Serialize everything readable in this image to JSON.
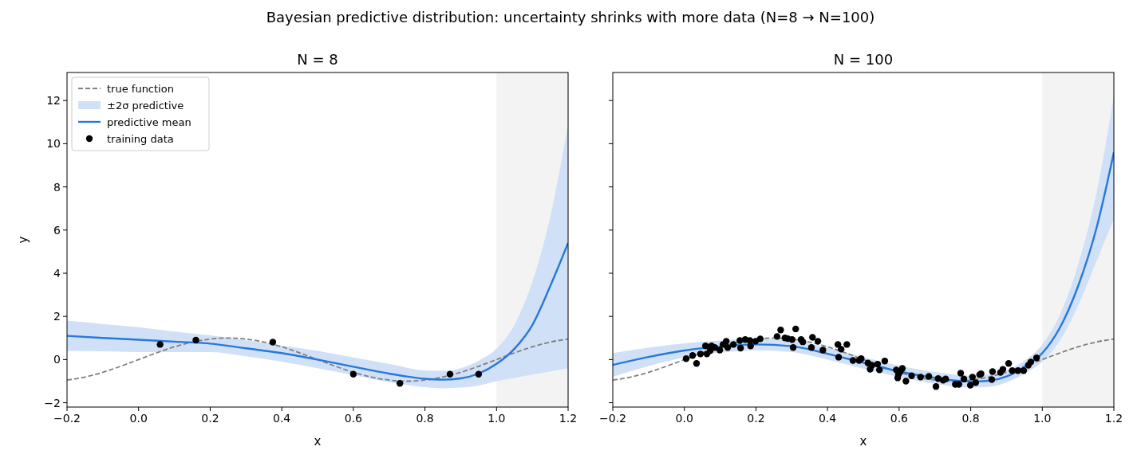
{
  "chart_data": [
    {
      "type": "line",
      "title": "N = 8",
      "xlabel": "x",
      "ylabel": "y",
      "annotations": [
        "Bayesian predictive distribution: uncertainty shrinks with more data (N=8 → N=100)",
        "±2σ predictive"
      ],
      "xlim": [
        -0.2,
        1.2
      ],
      "ylim": [
        -2.2,
        13.3
      ],
      "xticks": [
        {
          "value": -0.2,
          "label": "−0.2"
        },
        {
          "value": 0,
          "label": "0.0"
        },
        {
          "value": 0.2,
          "label": "0.2"
        },
        {
          "value": 0.4,
          "label": "0.4"
        },
        {
          "value": 0.6,
          "label": "0.6"
        },
        {
          "value": 0.8,
          "label": "0.8"
        },
        {
          "value": 1,
          "label": "1.0"
        },
        {
          "value": 1.2,
          "label": "1.2"
        }
      ],
      "yticks": [
        {
          "value": -2,
          "label": "−2"
        },
        0,
        2,
        4,
        6,
        8,
        10,
        12
      ],
      "legend": "upper left",
      "grid": false,
      "bands": [
        {
          "axis": "x",
          "from": 1.0,
          "to": 1.2,
          "color": "#f3f3f3"
        }
      ],
      "series": [
        {
          "name": "true function",
          "type": "line",
          "color": "#808080",
          "line_style": "dashed",
          "x": [
            -0.2,
            -0.15,
            -0.1,
            -0.05,
            0,
            0.05,
            0.1,
            0.15,
            0.2,
            0.25,
            0.3,
            0.35,
            0.4,
            0.45,
            0.5,
            0.55,
            0.6,
            0.65,
            0.7,
            0.75,
            0.8,
            0.85,
            0.9,
            0.95,
            1.0,
            1.05,
            1.1,
            1.15,
            1.2
          ],
          "values": [
            -0.95,
            -0.81,
            -0.59,
            -0.31,
            0,
            0.31,
            0.59,
            0.81,
            0.95,
            1,
            0.95,
            0.81,
            0.59,
            0.31,
            0,
            -0.31,
            -0.59,
            -0.81,
            -0.95,
            -1,
            -0.95,
            -0.81,
            -0.59,
            -0.31,
            0,
            0.31,
            0.59,
            0.81,
            0.95
          ]
        },
        {
          "name": "predictive mean",
          "type": "line",
          "color": "#2878d8",
          "line_style": "solid",
          "x": [
            -0.2,
            -0.1,
            0,
            0.1,
            0.2,
            0.3,
            0.4,
            0.5,
            0.6,
            0.7,
            0.8,
            0.85,
            0.9,
            0.95,
            1.0,
            1.05,
            1.1,
            1.15,
            1.2
          ],
          "values": [
            1.1,
            1.0,
            0.92,
            0.83,
            0.74,
            0.52,
            0.3,
            0.0,
            -0.33,
            -0.65,
            -0.89,
            -0.93,
            -0.87,
            -0.65,
            -0.2,
            0.5,
            1.6,
            3.4,
            5.4
          ],
          "upper": [
            1.8,
            1.65,
            1.5,
            1.3,
            1.12,
            0.9,
            0.65,
            0.4,
            0.1,
            -0.2,
            -0.5,
            -0.52,
            -0.4,
            -0.05,
            0.5,
            1.6,
            3.6,
            6.6,
            10.9
          ],
          "lower": [
            0.4,
            0.38,
            0.35,
            0.35,
            0.35,
            0.15,
            -0.1,
            -0.4,
            -0.72,
            -1.05,
            -1.28,
            -1.33,
            -1.3,
            -1.2,
            -1.0,
            -0.85,
            -0.7,
            -0.55,
            -0.4
          ]
        },
        {
          "name": "training data",
          "type": "scatter",
          "color": "#000000",
          "marker": "circle",
          "x": [
            0.06,
            0.16,
            0.375,
            0.6,
            0.73,
            0.87,
            0.95
          ],
          "values": [
            0.7,
            0.9,
            0.81,
            -0.68,
            -1.1,
            -0.68,
            -0.68
          ]
        }
      ]
    },
    {
      "type": "line",
      "title": "N = 100",
      "xlabel": "x",
      "tick_labels": "x",
      "xlim": [
        -0.2,
        1.2
      ],
      "ylim": [
        -2.2,
        13.3
      ],
      "xticks": [
        {
          "value": -0.2,
          "label": "−0.2"
        },
        {
          "value": 0,
          "label": "0.0"
        },
        {
          "value": 0.2,
          "label": "0.2"
        },
        {
          "value": 0.4,
          "label": "0.4"
        },
        {
          "value": 0.6,
          "label": "0.6"
        },
        {
          "value": 0.8,
          "label": "0.8"
        },
        {
          "value": 1,
          "label": "1.0"
        },
        {
          "value": 1.2,
          "label": "1.2"
        }
      ],
      "yticks": [
        -2,
        0,
        2,
        4,
        6,
        8,
        10,
        12
      ],
      "legend": false,
      "grid": false,
      "bands": [
        {
          "axis": "x",
          "from": 1.0,
          "to": 1.2,
          "color": "#f3f3f3"
        }
      ],
      "series": [
        {
          "type": "line",
          "color": "#808080",
          "line_style": "dashed",
          "x": [
            -0.2,
            -0.15,
            -0.1,
            -0.05,
            0,
            0.05,
            0.1,
            0.15,
            0.2,
            0.25,
            0.3,
            0.35,
            0.4,
            0.45,
            0.5,
            0.55,
            0.6,
            0.65,
            0.7,
            0.75,
            0.8,
            0.85,
            0.9,
            0.95,
            1.0,
            1.05,
            1.1,
            1.15,
            1.2
          ],
          "values": [
            -0.95,
            -0.81,
            -0.59,
            -0.31,
            0,
            0.31,
            0.59,
            0.81,
            0.95,
            1,
            0.95,
            0.81,
            0.59,
            0.31,
            0,
            -0.31,
            -0.59,
            -0.81,
            -0.95,
            -1,
            -0.95,
            -0.81,
            -0.59,
            -0.31,
            0,
            0.31,
            0.59,
            0.81,
            0.95
          ]
        },
        {
          "type": "line",
          "color": "#2878d8",
          "line_style": "solid",
          "x": [
            -0.2,
            -0.1,
            0,
            0.1,
            0.2,
            0.3,
            0.4,
            0.5,
            0.6,
            0.7,
            0.8,
            0.85,
            0.9,
            0.95,
            1.0,
            1.05,
            1.1,
            1.15,
            1.2
          ],
          "values": [
            -0.25,
            0.12,
            0.42,
            0.6,
            0.7,
            0.62,
            0.27,
            -0.15,
            -0.55,
            -0.85,
            -1.02,
            -0.98,
            -0.78,
            -0.35,
            0.3,
            1.5,
            3.4,
            6.0,
            9.6
          ],
          "upper": [
            0.3,
            0.55,
            0.75,
            0.88,
            0.97,
            0.9,
            0.55,
            0.12,
            -0.28,
            -0.58,
            -0.75,
            -0.7,
            -0.5,
            -0.05,
            0.7,
            2.1,
            4.4,
            7.6,
            12.2
          ],
          "lower": [
            -0.8,
            -0.3,
            0.1,
            0.32,
            0.43,
            0.35,
            0.0,
            -0.42,
            -0.82,
            -1.12,
            -1.3,
            -1.27,
            -1.06,
            -0.65,
            -0.1,
            0.9,
            2.5,
            4.5,
            6.5
          ]
        },
        {
          "type": "scatter",
          "color": "#000000",
          "marker": "circle",
          "x": [
            0.005,
            0.023,
            0.034,
            0.045,
            0.059,
            0.063,
            0.072,
            0.076,
            0.085,
            0.099,
            0.108,
            0.117,
            0.121,
            0.137,
            0.155,
            0.157,
            0.17,
            0.183,
            0.185,
            0.199,
            0.212,
            0.259,
            0.269,
            0.281,
            0.289,
            0.301,
            0.304,
            0.311,
            0.326,
            0.331,
            0.355,
            0.358,
            0.373,
            0.387,
            0.429,
            0.431,
            0.438,
            0.454,
            0.471,
            0.488,
            0.494,
            0.513,
            0.519,
            0.524,
            0.54,
            0.545,
            0.56,
            0.592,
            0.598,
            0.603,
            0.596,
            0.609,
            0.619,
            0.635,
            0.66,
            0.683,
            0.703,
            0.709,
            0.723,
            0.73,
            0.757,
            0.767,
            0.772,
            0.781,
            0.799,
            0.805,
            0.814,
            0.825,
            0.829,
            0.859,
            0.861,
            0.883,
            0.89,
            0.906,
            0.916,
            0.932,
            0.948,
            0.961,
            0.968,
            0.984
          ],
          "values": [
            0.04,
            0.19,
            -0.18,
            0.26,
            0.63,
            0.26,
            0.41,
            0.63,
            0.56,
            0.44,
            0.7,
            0.85,
            0.56,
            0.7,
            0.88,
            0.53,
            0.93,
            0.88,
            0.63,
            0.85,
            0.96,
            1.07,
            1.37,
            1.0,
            0.97,
            0.93,
            0.56,
            1.42,
            0.93,
            0.82,
            0.56,
            1.03,
            0.85,
            0.44,
            0.7,
            0.11,
            0.48,
            0.7,
            -0.04,
            -0.04,
            0.04,
            -0.16,
            -0.45,
            -0.26,
            -0.21,
            -0.48,
            -0.07,
            -0.48,
            -0.7,
            -0.56,
            -0.85,
            -0.41,
            -1.0,
            -0.75,
            -0.81,
            -0.78,
            -1.25,
            -0.88,
            -0.96,
            -0.9,
            -1.15,
            -1.15,
            -0.63,
            -0.9,
            -1.19,
            -0.81,
            -1.07,
            -0.7,
            -0.66,
            -0.93,
            -0.56,
            -0.6,
            -0.45,
            -0.18,
            -0.51,
            -0.51,
            -0.51,
            -0.26,
            -0.11,
            0.08
          ]
        }
      ]
    }
  ]
}
